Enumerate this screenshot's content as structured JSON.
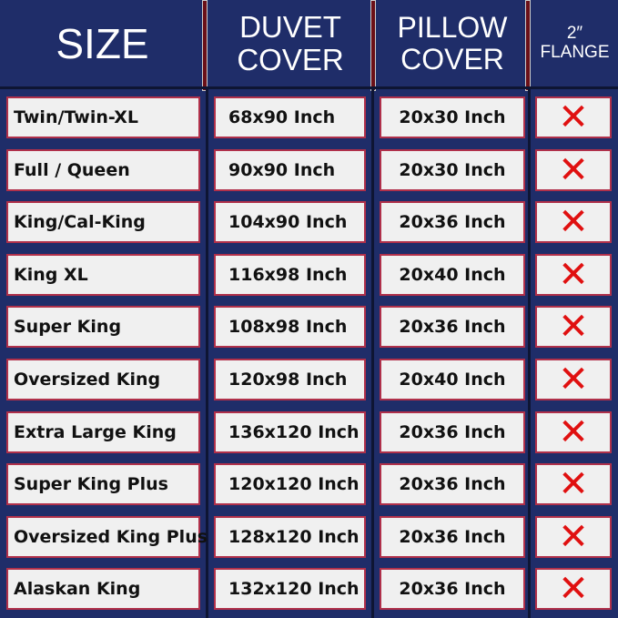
{
  "header": {
    "size": "SIZE",
    "duvet_line1": "DUVET",
    "duvet_line2": "COVER",
    "pillow_line1": "PILLOW",
    "pillow_line2": "COVER",
    "flange_line1": "2″",
    "flange_line2": "FLANGE"
  },
  "colors": {
    "background": "#1f2d69",
    "cell": "#f0f0f0",
    "cell_border": "#b0304a",
    "cross": "#e01010",
    "separator": "#6b1018"
  },
  "rows": [
    {
      "size": "Twin/Twin-XL",
      "duvet": "68x90 Inch",
      "pillow": "20x30 Inch",
      "flange": "✕"
    },
    {
      "size": "Full / Queen",
      "duvet": "90x90 Inch",
      "pillow": "20x30 Inch",
      "flange": "✕"
    },
    {
      "size": "King/Cal-King",
      "duvet": "104x90 Inch",
      "pillow": "20x36 Inch",
      "flange": "✕"
    },
    {
      "size": "King XL",
      "duvet": "116x98 Inch",
      "pillow": "20x40 Inch",
      "flange": "✕"
    },
    {
      "size": "Super King",
      "duvet": "108x98 Inch",
      "pillow": "20x36 Inch",
      "flange": "✕"
    },
    {
      "size": "Oversized King",
      "duvet": "120x98 Inch",
      "pillow": "20x40 Inch",
      "flange": "✕"
    },
    {
      "size": "Extra Large King",
      "duvet": "136x120 Inch",
      "pillow": "20x36 Inch",
      "flange": "✕"
    },
    {
      "size": "Super King Plus",
      "duvet": "120x120 Inch",
      "pillow": "20x36 Inch",
      "flange": "✕"
    },
    {
      "size": "Oversized King Plus",
      "duvet": "128x120 Inch",
      "pillow": "20x36 Inch",
      "flange": "✕"
    },
    {
      "size": "Alaskan King",
      "duvet": "132x120 Inch",
      "pillow": "20x36 Inch",
      "flange": "✕"
    }
  ]
}
